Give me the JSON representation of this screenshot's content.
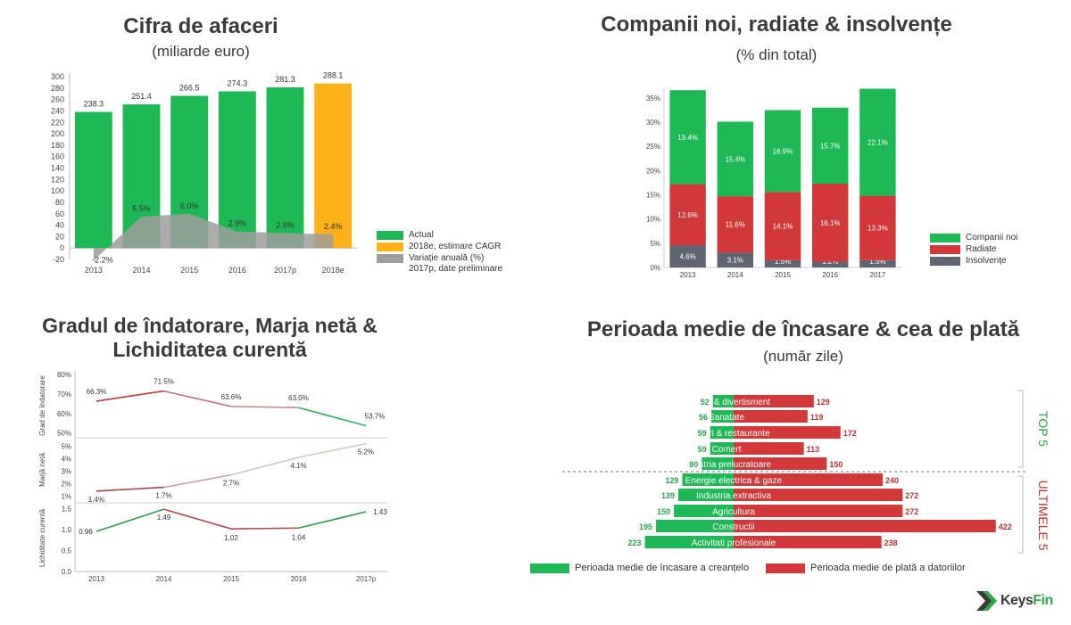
{
  "colors": {
    "green": "#1db954",
    "orange": "#fbb117",
    "gray": "#9e9e9e",
    "red": "#d33838",
    "darkgray": "#5f6570",
    "darkred": "#b53a3a"
  },
  "chart_data": [
    {
      "id": "turnover",
      "type": "bar",
      "title": "Cifra de afaceri",
      "subtitle": "(miliarde euro)",
      "categories": [
        "2013",
        "2014",
        "2015",
        "2016",
        "2017p",
        "2018e"
      ],
      "values": [
        238.3,
        251.4,
        266.5,
        274.3,
        281.3,
        288.1
      ],
      "value_labels": [
        "238.3",
        "251.4",
        "266.5",
        "274.3",
        "281.3",
        "288.1"
      ],
      "yticks": [
        "-20",
        "0",
        "20",
        "40",
        "60",
        "80",
        "100",
        "120",
        "140",
        "160",
        "180",
        "200",
        "220",
        "240",
        "260",
        "280",
        "300"
      ],
      "ylim": [
        -20,
        300
      ],
      "growth": {
        "values": [
          -2.2,
          5.5,
          6.0,
          2.9,
          2.6,
          2.4
        ],
        "labels": [
          "-2.2%",
          "5.5%",
          "6.0%",
          "2.9%",
          "2.6%",
          "2.4%"
        ]
      },
      "legend": [
        "Actual",
        "2018e, estimare CAGR",
        "Variație anuală (%)",
        "2017p, date preliminare"
      ]
    },
    {
      "id": "companies",
      "type": "bar",
      "stacked": true,
      "title": "Companii noi, radiate & insolvențe",
      "subtitle": "(% din total)",
      "categories": [
        "2013",
        "2014",
        "2015",
        "2016",
        "2017"
      ],
      "series": [
        {
          "name": "Insolvențe",
          "values": [
            4.6,
            3.1,
            1.5,
            1.2,
            1.5
          ],
          "labels": [
            "4.6%",
            "3.1%",
            "1.5%",
            "1.2%",
            "1.5%"
          ]
        },
        {
          "name": "Radiate",
          "values": [
            12.6,
            11.6,
            14.1,
            16.1,
            13.3
          ],
          "labels": [
            "12.6%",
            "11.6%",
            "14.1%",
            "16.1%",
            "13.3%"
          ]
        },
        {
          "name": "Companii noi",
          "values": [
            19.4,
            15.4,
            16.9,
            15.7,
            22.1
          ],
          "labels": [
            "19.4%",
            "15.4%",
            "16.9%",
            "15.7%",
            "22.1%"
          ]
        }
      ],
      "yticks": [
        "0%",
        "5%",
        "10%",
        "15%",
        "20%",
        "25%",
        "30%",
        "35%"
      ],
      "ylim": [
        0,
        37
      ],
      "legend": [
        "Companii noi",
        "Radiate",
        "Insolvențe"
      ]
    },
    {
      "id": "ratios",
      "type": "line",
      "title": "Gradul de îndatorare, Marja netă & Lichiditatea curentă",
      "x": [
        "2013",
        "2014",
        "2015",
        "2016",
        "2017p"
      ],
      "panels": [
        {
          "ylabel": "Grad de îndatorare",
          "values": [
            66.3,
            71.5,
            63.6,
            63.0,
            53.7
          ],
          "labels": [
            "66.3%",
            "71.5%",
            "63.6%",
            "63.0%",
            "53.7%"
          ],
          "yticks": [
            "50%",
            "60%",
            "70%",
            "80%"
          ],
          "tickvals": [
            50,
            60,
            70,
            80
          ],
          "ylim": [
            48,
            80
          ]
        },
        {
          "ylabel": "Marjă netă",
          "values": [
            1.4,
            1.7,
            2.7,
            4.1,
            5.2
          ],
          "labels": [
            "1.4%",
            "1.7%",
            "2.7%",
            "4.1%",
            "5.2%"
          ],
          "yticks": [
            "1%",
            "2%",
            "3%",
            "4%",
            "5%"
          ],
          "tickvals": [
            1,
            2,
            3,
            4,
            5
          ],
          "ylim": [
            0.6,
            5.6
          ]
        },
        {
          "ylabel": "Lichiditate curentă",
          "values": [
            0.96,
            1.49,
            1.02,
            1.04,
            1.43
          ],
          "labels": [
            "0.96",
            "1.49",
            "1.02",
            "1.04",
            "1.43"
          ],
          "yticks": [
            "0.0",
            "0.5",
            "1.0",
            "1.5"
          ],
          "tickvals": [
            0,
            0.5,
            1.0,
            1.5
          ],
          "ylim": [
            0,
            1.6
          ]
        }
      ]
    },
    {
      "id": "periods",
      "type": "bar",
      "orientation": "horizontal",
      "title": "Perioada medie de încasare & cea de plată",
      "subtitle": "(număr zile)",
      "categories": [
        "Cultura & divertisment",
        "Sanatate",
        "Hoteluri & restaurante",
        "Comert",
        "Industria prelucratoare",
        "Energie electrica & gaze",
        "Industria extractiva",
        "Agricultura",
        "Constructii",
        "Activitati profesionale"
      ],
      "series": [
        {
          "name": "Perioada medie de încasare a creanțelo",
          "values": [
            52,
            56,
            59,
            59,
            80,
            129,
            139,
            150,
            195,
            223
          ]
        },
        {
          "name": "Perioada medie de plată a datoriilor",
          "values": [
            129,
            119,
            172,
            113,
            150,
            240,
            272,
            272,
            422,
            238
          ]
        }
      ],
      "groups": [
        "TOP 5",
        "ULTIMELE 5"
      ]
    }
  ],
  "logo": "KeysFin"
}
